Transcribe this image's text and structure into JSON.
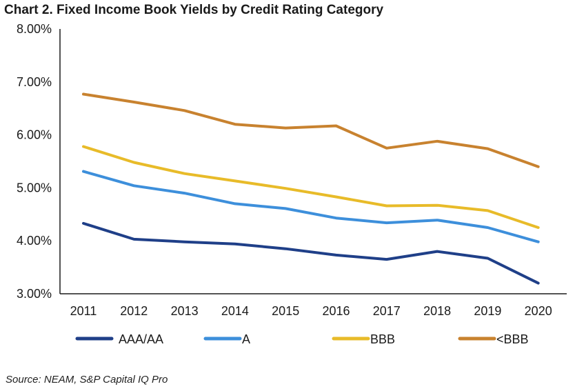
{
  "chart_data": {
    "type": "line",
    "title": "Chart 2. Fixed Income Book Yields by Credit Rating Category",
    "source": "Source: NEAM, S&P Capital IQ Pro",
    "categories": [
      "2011",
      "2012",
      "2013",
      "2014",
      "2015",
      "2016",
      "2017",
      "2018",
      "2019",
      "2020"
    ],
    "ylim": [
      3.0,
      8.0
    ],
    "yticks": [
      {
        "value": 8.0,
        "label": "8.00%"
      },
      {
        "value": 7.0,
        "label": "7.00%"
      },
      {
        "value": 6.0,
        "label": "6.00%"
      },
      {
        "value": 5.0,
        "label": "5.00%"
      },
      {
        "value": 4.0,
        "label": "4.00%"
      },
      {
        "value": 3.0,
        "label": "3.00%"
      }
    ],
    "grid": false,
    "legend_position": "bottom",
    "series": [
      {
        "name": "AAA/AA",
        "color": "#1f3f88",
        "values": [
          4.33,
          4.03,
          3.98,
          3.94,
          3.85,
          3.73,
          3.65,
          3.8,
          3.67,
          3.2
        ]
      },
      {
        "name": "A",
        "color": "#3d8fdb",
        "values": [
          5.31,
          5.04,
          4.9,
          4.7,
          4.61,
          4.43,
          4.34,
          4.39,
          4.25,
          3.98
        ]
      },
      {
        "name": "BBB",
        "color": "#e8bb29",
        "values": [
          5.78,
          5.48,
          5.27,
          5.13,
          4.99,
          4.83,
          4.66,
          4.67,
          4.57,
          4.25
        ]
      },
      {
        "name": "<BBB",
        "color": "#c8822f",
        "values": [
          6.77,
          6.62,
          6.46,
          6.2,
          6.13,
          6.17,
          5.75,
          5.88,
          5.74,
          5.4
        ]
      }
    ]
  }
}
